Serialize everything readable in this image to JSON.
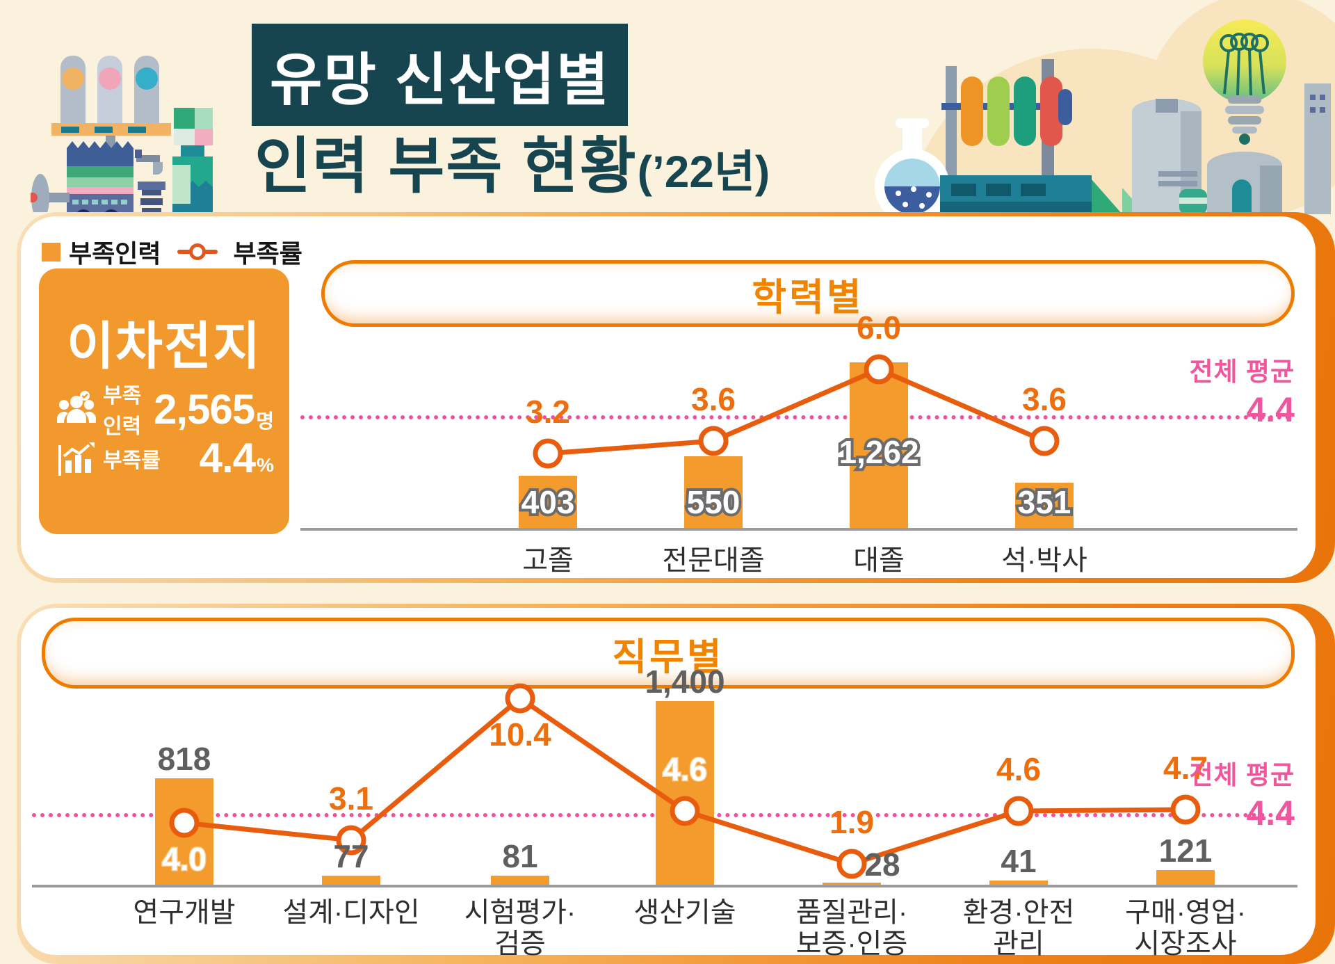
{
  "header": {
    "title_line1": "유망 신산업별",
    "title_line2": "인력 부족 현황",
    "title_year": "(’22년)"
  },
  "legend": {
    "bar_label": "부족인력",
    "line_label": "부족률"
  },
  "industry_card": {
    "name": "이차전지",
    "metrics": [
      {
        "icon": "people-icon",
        "label": "부족인력",
        "value": "2,565",
        "unit": "명"
      },
      {
        "icon": "bar-chart-icon",
        "label": "부족률",
        "value": "4.4",
        "unit": "%"
      }
    ]
  },
  "colors": {
    "background": "#FBF2DE",
    "bar_orange": "#F49B2E",
    "line_orange": "#E85C0E",
    "rate_text_orange": "#EC6E0C",
    "average_pink": "#F0569D",
    "title_teal": "#16454F",
    "section_title_orange": "#F08300",
    "value_gray": "#5F5F5F"
  },
  "chart_data": [
    {
      "type": "bar+line",
      "title": "학력별",
      "categories": [
        [
          "고졸"
        ],
        [
          "전문대졸"
        ],
        [
          "대졸"
        ],
        [
          "석·박사"
        ]
      ],
      "bars": {
        "name": "부족인력",
        "values": [
          403,
          550,
          1262,
          351
        ],
        "labels": [
          "403",
          "550",
          "1,262",
          "351"
        ],
        "label_pos": [
          "inside",
          "inside",
          "mid",
          "inside"
        ]
      },
      "line": {
        "name": "부족률",
        "values": [
          3.2,
          3.6,
          6.0,
          3.6
        ],
        "labels": [
          "3.2",
          "3.6",
          "6.0",
          "3.6"
        ],
        "label_pos": [
          "above",
          "above",
          "above",
          "above"
        ],
        "label_style": [
          "orange",
          "orange",
          "orange",
          "orange"
        ]
      },
      "average": {
        "label": "전체 평균",
        "value": "4.4"
      }
    },
    {
      "type": "bar+line",
      "title": "직무별",
      "categories": [
        [
          "연구개발"
        ],
        [
          "설계·디자인"
        ],
        [
          "시험평가·",
          "검증"
        ],
        [
          "생산기술"
        ],
        [
          "품질관리·",
          "보증·인증"
        ],
        [
          "환경·안전",
          "관리"
        ],
        [
          "구매·영업·",
          "시장조사"
        ]
      ],
      "bars": {
        "name": "부족인력",
        "values": [
          818,
          77,
          81,
          1400,
          28,
          41,
          121
        ],
        "labels": [
          "818",
          "77",
          "81",
          "1,400",
          "28",
          "41",
          "121"
        ],
        "label_pos": [
          "above",
          "above",
          "above",
          "above",
          "right",
          "above",
          "above"
        ]
      },
      "line": {
        "name": "부족률",
        "values": [
          4.0,
          3.1,
          10.4,
          4.6,
          1.9,
          4.6,
          4.7
        ],
        "labels": [
          "4.0",
          "3.1",
          "10.4",
          "4.6",
          "1.9",
          "4.6",
          "4.7"
        ],
        "label_pos": [
          "below",
          "above",
          "below",
          "above",
          "above",
          "above",
          "above"
        ],
        "label_style": [
          "outline",
          "orange",
          "orange",
          "outline",
          "orange",
          "orange",
          "orange"
        ]
      },
      "average": {
        "label": "전체 평균",
        "value": "4.4"
      }
    }
  ]
}
